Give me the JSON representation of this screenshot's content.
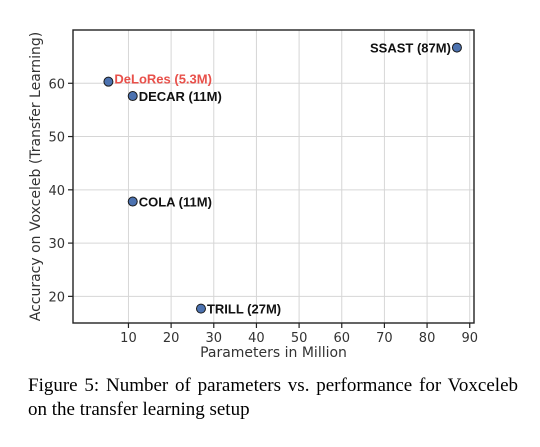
{
  "chart_data": {
    "type": "scatter",
    "xlabel": "Parameters in Million",
    "ylabel": "Accuracy on Voxceleb (Transfer Learning)",
    "xlim": [
      -3,
      91
    ],
    "ylim": [
      15,
      70
    ],
    "x_ticks": [
      10,
      20,
      30,
      40,
      50,
      60,
      70,
      80,
      90
    ],
    "y_ticks": [
      20,
      30,
      40,
      50,
      60
    ],
    "grid": true,
    "marker_color": "#4c72b0",
    "points": [
      {
        "label": "DeLoRes (5.3M)",
        "x": 5.3,
        "y": 60.3,
        "color": "#e8504a",
        "label_side": "right-up"
      },
      {
        "label": "DECAR (11M)",
        "x": 11,
        "y": 57.6,
        "color": "#111111",
        "label_side": "right"
      },
      {
        "label": "COLA (11M)",
        "x": 11,
        "y": 37.8,
        "color": "#111111",
        "label_side": "right"
      },
      {
        "label": "TRILL (27M)",
        "x": 27,
        "y": 17.7,
        "color": "#111111",
        "label_side": "right"
      },
      {
        "label": "SSAST (87M)",
        "x": 87,
        "y": 66.7,
        "color": "#111111",
        "label_side": "left"
      }
    ]
  },
  "caption": "Figure 5: Number of parameters vs. performance for Voxceleb on the transfer learning setup"
}
